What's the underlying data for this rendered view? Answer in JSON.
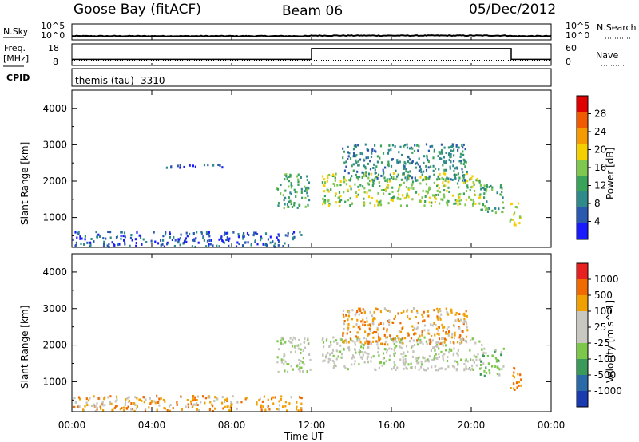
{
  "header": {
    "station": "Goose Bay (fitACF)",
    "beam": "Beam 06",
    "date": "05/Dec/2012"
  },
  "top_panels": {
    "nsky_label": "N.Sky",
    "nsearch_label": "N.Search",
    "nsky_ticks": [
      "10^5",
      "10^0"
    ],
    "nsearch_ticks": [
      "10^5",
      "10^0"
    ],
    "freq_label": "Freq.",
    "freq_unit": "[MHz]",
    "cpid_label": "CPID",
    "nave_label": "Nave",
    "freq_ticks": [
      "18",
      "8"
    ],
    "nave_ticks": [
      "60",
      "0"
    ],
    "cpid_text": "themis (tau) -3310"
  },
  "colors": {
    "power": [
      "#1a1aff",
      "#2a5ab0",
      "#2f8a8a",
      "#3aa35a",
      "#7ec850",
      "#f5d000",
      "#f59a00",
      "#f05a00",
      "#e00000"
    ],
    "velocity": [
      "#1a3ab0",
      "#2a6aa8",
      "#3a9a5a",
      "#7cc84a",
      "#c8c8c0",
      "#c8c8c0",
      "#f0a000",
      "#f06a00",
      "#e82020",
      "#e00000"
    ],
    "ground_scatter": "#c4c4bc"
  },
  "chart_data": [
    {
      "type": "line",
      "title": "N.Sky / N.Search",
      "x": [
        0,
        12,
        24
      ],
      "series": [
        {
          "name": "N.Sky",
          "values": [
            1.2,
            1.4,
            1.2
          ]
        },
        {
          "name": "N.Search",
          "values": [
            1.0,
            1.1,
            1.0
          ]
        }
      ],
      "ylim": [
        0,
        5
      ],
      "xlim": [
        0,
        24
      ]
    },
    {
      "type": "line",
      "title": "Freq. / Nave",
      "x": [
        0,
        12.0,
        12.0,
        22.0,
        22.0,
        24
      ],
      "series": [
        {
          "name": "Freq.",
          "values": [
            10.8,
            10.8,
            15.8,
            15.8,
            10.8,
            10.8
          ]
        },
        {
          "name": "Nave",
          "values": [
            5,
            5,
            5,
            5,
            5,
            5
          ]
        }
      ],
      "ylim": [
        8,
        18
      ],
      "xlim": [
        0,
        24
      ]
    },
    {
      "type": "heatmap",
      "title": "Power",
      "ylabel": "Slant Range [km]",
      "colorbar_label": "Power [dB]",
      "colorbar_ticks": [
        "28",
        "24",
        "20",
        "16",
        "12",
        "8",
        "4"
      ],
      "xlim": [
        0,
        24
      ],
      "ylim": [
        180,
        4500
      ],
      "yticks": [
        "4000",
        "3000",
        "2000",
        "1000"
      ],
      "regions": [
        {
          "t0": 0.0,
          "t1": 11.5,
          "r0": 180,
          "r1": 600,
          "level": 1
        },
        {
          "t0": 10.2,
          "t1": 11.9,
          "r0": 1250,
          "r1": 2200,
          "level": 3
        },
        {
          "t0": 12.5,
          "t1": 20.5,
          "r0": 1300,
          "r1": 2200,
          "level": 4
        },
        {
          "t0": 13.5,
          "t1": 19.8,
          "r0": 2000,
          "r1": 3000,
          "level": 2
        },
        {
          "t0": 20.4,
          "t1": 21.6,
          "r0": 1100,
          "r1": 1900,
          "level": 3
        },
        {
          "t0": 21.9,
          "t1": 22.5,
          "r0": 750,
          "r1": 1400,
          "level": 5
        },
        {
          "t0": 4.0,
          "t1": 7.5,
          "r0": 2350,
          "r1": 2450,
          "level": 1
        }
      ]
    },
    {
      "type": "heatmap",
      "title": "Velocity",
      "ylabel": "Slant Range [km]",
      "xlabel": "Time UT",
      "colorbar_label": "Velocity [m s^-1]",
      "colorbar_ticks": [
        "1000",
        "500",
        "100",
        "25",
        "-25",
        "-100",
        "-500",
        "-1000"
      ],
      "xlim": [
        0,
        24
      ],
      "ylim": [
        180,
        4500
      ],
      "yticks": [
        "4000",
        "3000",
        "2000",
        "1000"
      ],
      "xticks": [
        "00:00",
        "04:00",
        "08:00",
        "12:00",
        "16:00",
        "20:00",
        "00:00"
      ],
      "regions": [
        {
          "t0": 0.0,
          "t1": 11.5,
          "r0": 180,
          "r1": 600,
          "level": 6
        },
        {
          "t0": 10.2,
          "t1": 11.9,
          "r0": 1250,
          "r1": 2200,
          "level": 4
        },
        {
          "t0": 12.5,
          "t1": 20.5,
          "r0": 1300,
          "r1": 2200,
          "level": 4
        },
        {
          "t0": 13.5,
          "t1": 19.8,
          "r0": 2000,
          "r1": 3000,
          "level": 6
        },
        {
          "t0": 20.4,
          "t1": 21.6,
          "r0": 1100,
          "r1": 1900,
          "level": 3
        },
        {
          "t0": 21.9,
          "t1": 22.5,
          "r0": 750,
          "r1": 1400,
          "level": 7
        }
      ]
    }
  ]
}
